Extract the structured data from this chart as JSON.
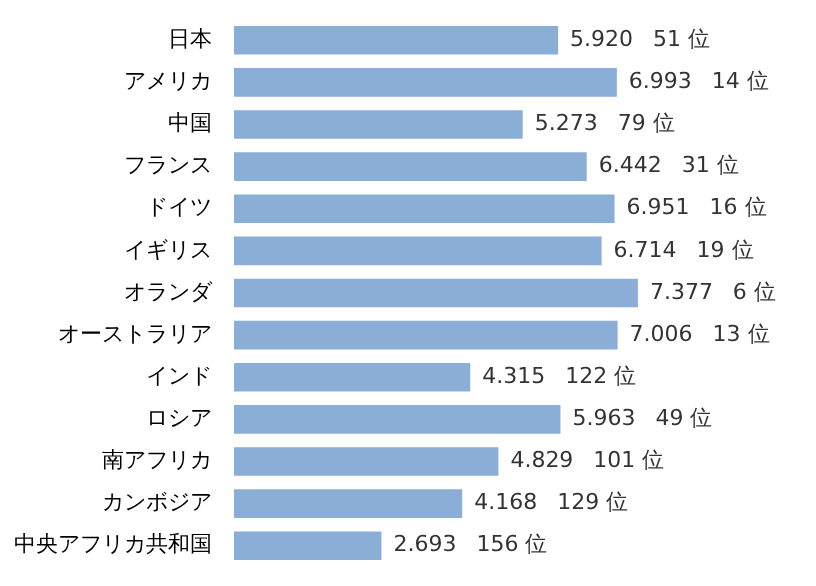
{
  "chart_data": {
    "type": "bar",
    "orientation": "horizontal",
    "categories": [
      "日本",
      "アメリカ",
      "中国",
      "フランス",
      "ドイツ",
      "イギリス",
      "オランダ",
      "オーストラリア",
      "インド",
      "ロシア",
      "南アフリカ",
      "カンボジア",
      "中央アフリカ共和国"
    ],
    "values": [
      5.92,
      6.993,
      5.273,
      6.442,
      6.951,
      6.714,
      7.377,
      7.006,
      4.315,
      5.963,
      4.829,
      4.168,
      2.693
    ],
    "value_labels": [
      "5.920",
      "6.993",
      "5.273",
      "6.442",
      "6.951",
      "6.714",
      "7.377",
      "7.006",
      "4.315",
      "5.963",
      "4.829",
      "4.168",
      "2.693"
    ],
    "annotations": [
      "51 位",
      "14 位",
      "79 位",
      "31 位",
      "16 位",
      "19 位",
      "6 位",
      "13 位",
      "122 位",
      "49 位",
      "101 位",
      "129 位",
      "156 位"
    ],
    "color": "#8aaed6",
    "tick_labels": "y",
    "legend": false
  }
}
